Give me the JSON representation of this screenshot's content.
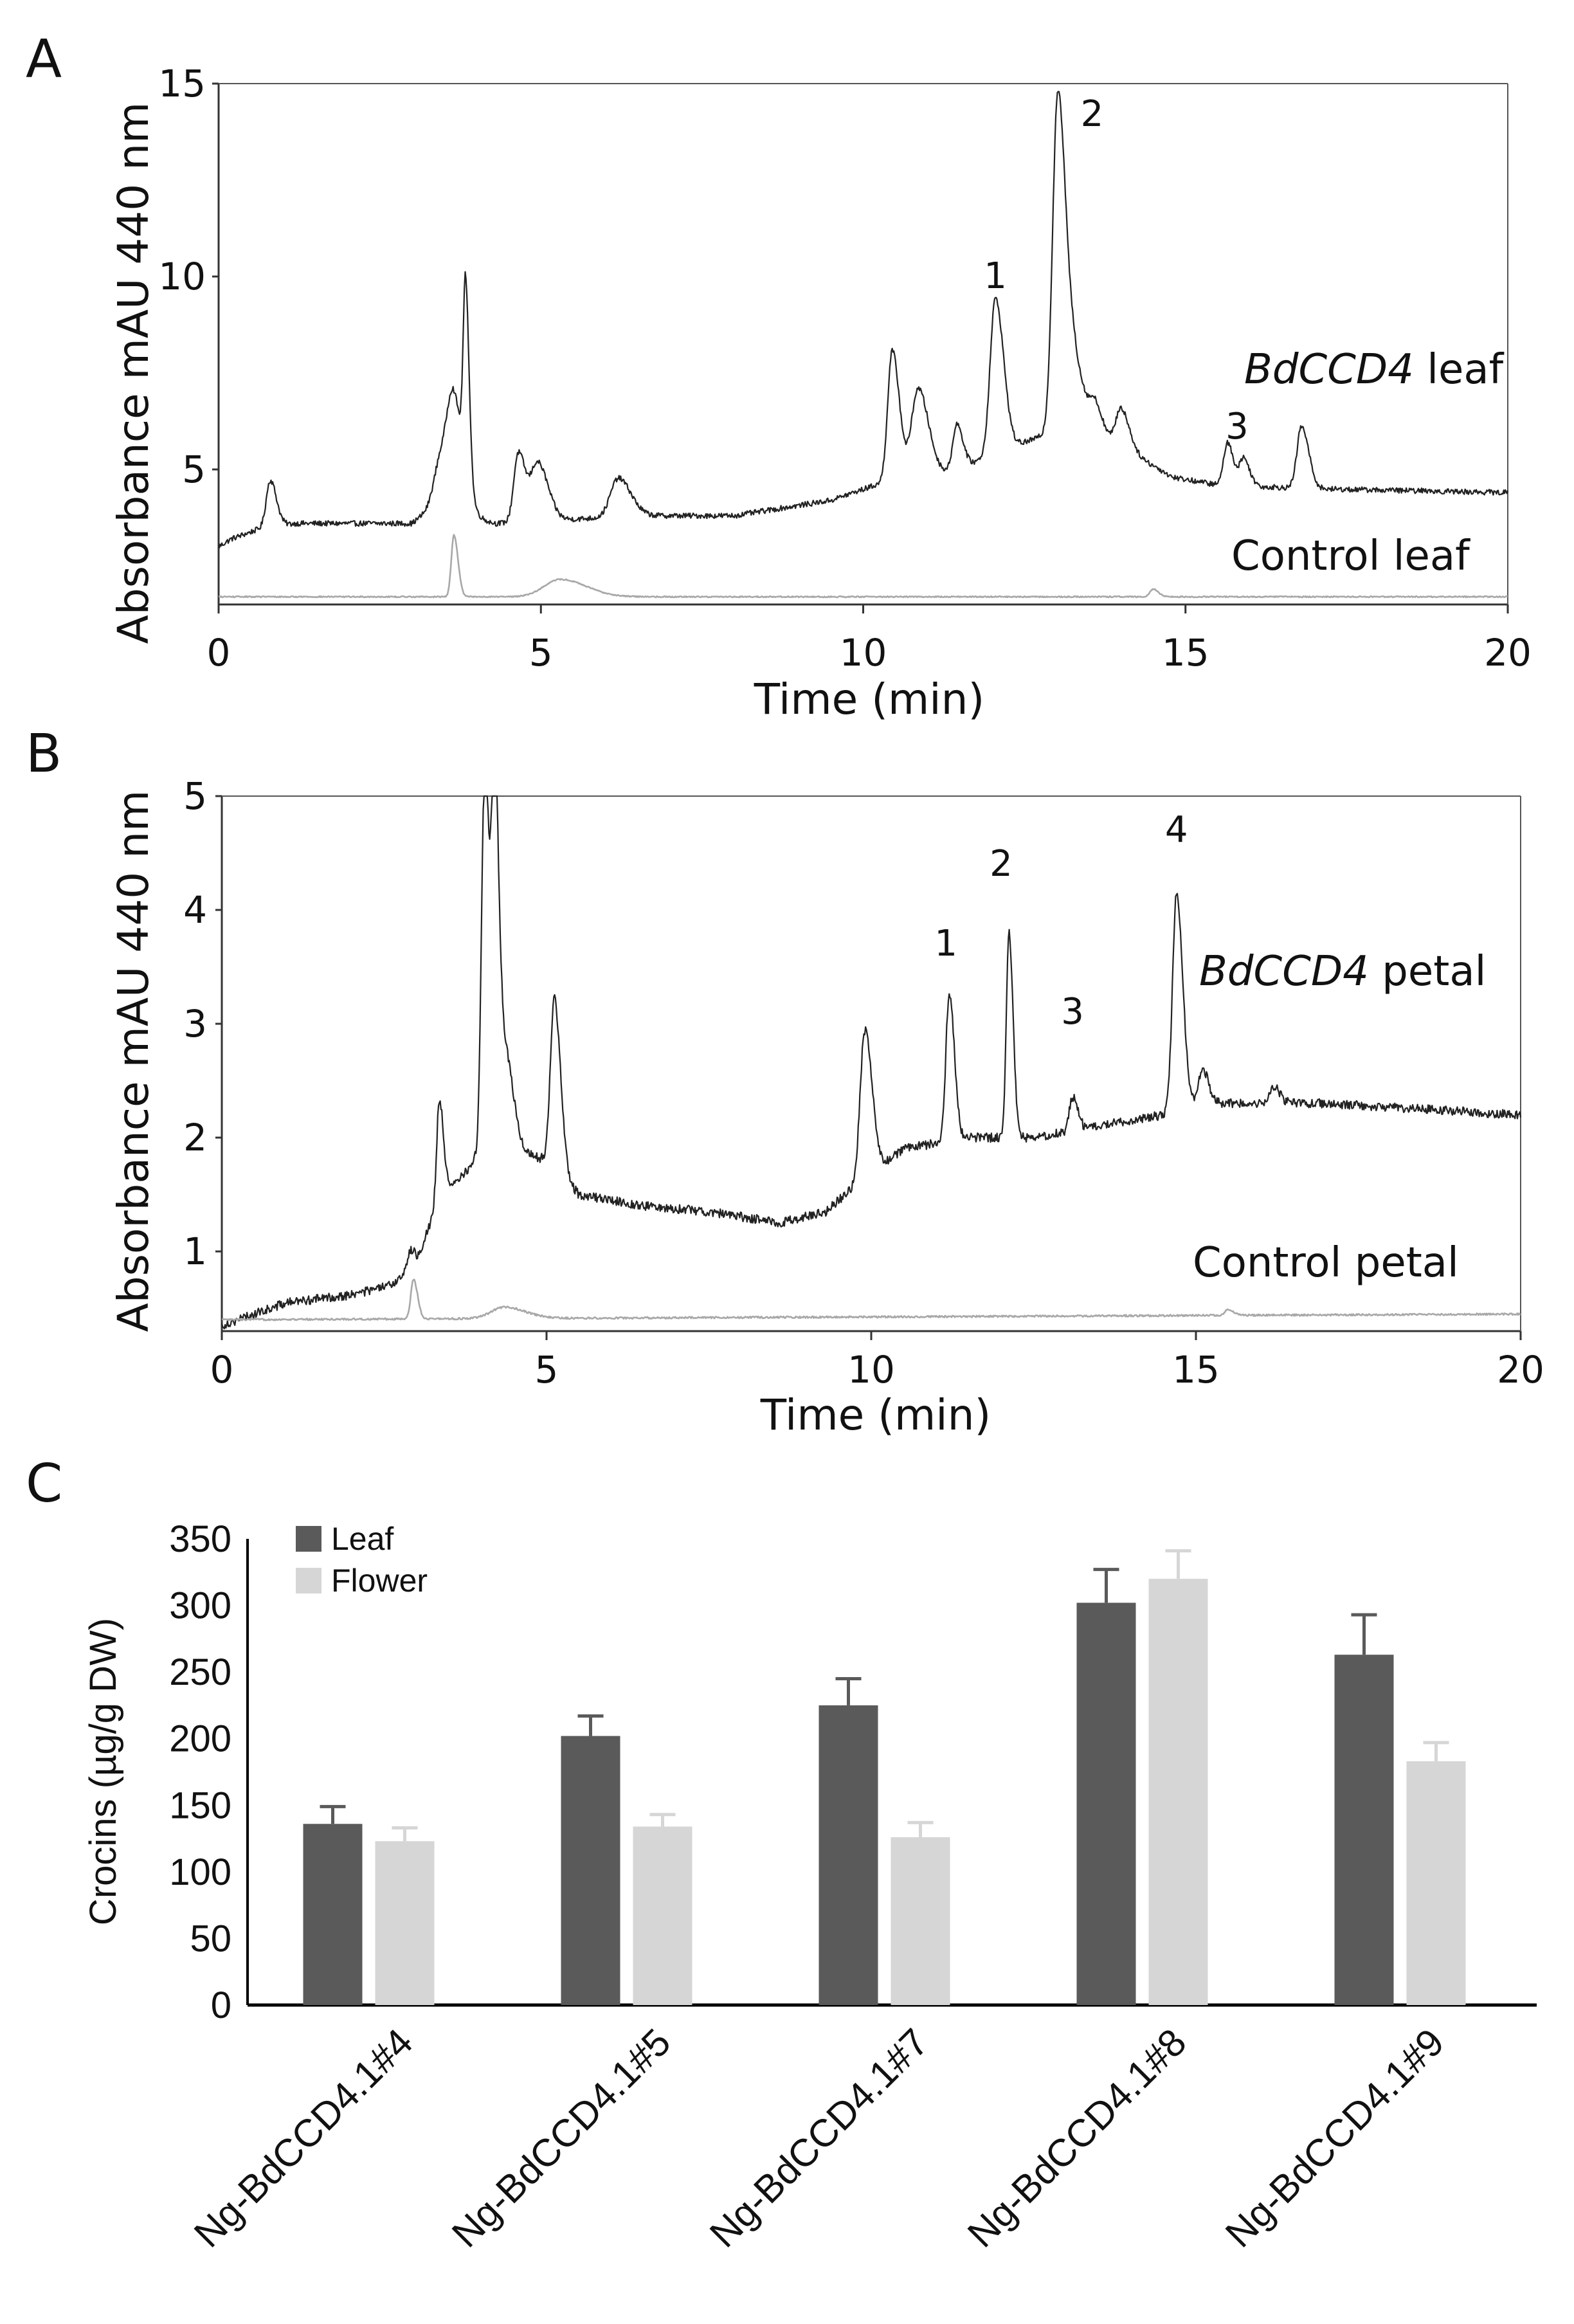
{
  "chart_data": [
    {
      "id": "A",
      "panel_letter": "A",
      "type": "line",
      "xlabel": "Time (min)",
      "ylabel": "Absorbance mAU 440 nm",
      "xlim": [
        0,
        20
      ],
      "ylim": [
        1.5,
        15
      ],
      "x_ticks": [
        0,
        5,
        10,
        15,
        20
      ],
      "y_ticks": [
        5,
        10,
        15
      ],
      "series": [
        {
          "name": "BdCCD4 leaf",
          "label_prefix": "BdCCD4",
          "label_suffix": " leaf",
          "color": "#222222",
          "baseline": [
            [
              0,
              3.0
            ],
            [
              0.2,
              3.2
            ],
            [
              0.7,
              3.5
            ],
            [
              1.2,
              3.6
            ],
            [
              3.0,
              3.6
            ],
            [
              3.3,
              4.0
            ],
            [
              4.3,
              3.6
            ],
            [
              6.5,
              3.8
            ],
            [
              8,
              3.8
            ],
            [
              9.5,
              4.2
            ],
            [
              10.2,
              4.6
            ],
            [
              11.5,
              5.0
            ],
            [
              12,
              5.4
            ],
            [
              13,
              6.0
            ],
            [
              14,
              5.6
            ],
            [
              14.8,
              4.8
            ],
            [
              15.5,
              4.6
            ],
            [
              17,
              4.5
            ],
            [
              20,
              4.4
            ]
          ],
          "peaks": [
            [
              0.8,
              1.2,
              0.06
            ],
            [
              3.45,
              1.3,
              0.1
            ],
            [
              3.65,
              2.6,
              0.1
            ],
            [
              3.83,
              4.8,
              0.035
            ],
            [
              4.65,
              1.8,
              0.07
            ],
            [
              4.95,
              1.5,
              0.1
            ],
            [
              6.2,
              1.0,
              0.12
            ],
            [
              10.45,
              3.4,
              0.07
            ],
            [
              10.85,
              2.3,
              0.1
            ],
            [
              11.45,
              1.2,
              0.06
            ],
            [
              12.05,
              4.0,
              0.08
            ],
            [
              13.02,
              8.8,
              0.08
            ],
            [
              13.3,
              1.6,
              0.1
            ],
            [
              13.6,
              0.8,
              0.08
            ],
            [
              14.0,
              1.0,
              0.08
            ],
            [
              15.65,
              1.1,
              0.06
            ],
            [
              15.9,
              0.7,
              0.06
            ],
            [
              16.8,
              1.6,
              0.07
            ]
          ],
          "noise_amplitude": 0.07
        },
        {
          "name": "Control leaf",
          "color": "#a8a8a8",
          "baseline": [
            [
              0,
              1.7
            ],
            [
              20,
              1.7
            ]
          ],
          "peaks": [
            [
              3.65,
              1.6,
              0.04
            ],
            [
              5.3,
              0.45,
              0.25
            ],
            [
              14.5,
              0.2,
              0.05
            ]
          ],
          "noise_amplitude": 0.015
        }
      ],
      "annotations": [
        {
          "text": "1",
          "x": 12.05,
          "y": 9.7
        },
        {
          "text": "2",
          "x": 13.55,
          "y": 13.9
        },
        {
          "text": "3",
          "x": 15.8,
          "y": 5.8
        }
      ]
    },
    {
      "id": "B",
      "panel_letter": "B",
      "type": "line",
      "xlabel": "Time (min)",
      "ylabel": "Absorbance mAU 440 nm",
      "xlim": [
        0,
        20
      ],
      "ylim": [
        0.3,
        5
      ],
      "x_ticks": [
        0,
        5,
        10,
        15,
        20
      ],
      "y_ticks": [
        1,
        2,
        3,
        4,
        5
      ],
      "series": [
        {
          "name": "BdCCD4 petal",
          "label_prefix": "BdCCD4",
          "label_suffix": " petal",
          "color": "#222222",
          "baseline": [
            [
              0,
              0.35
            ],
            [
              0.5,
              0.45
            ],
            [
              1,
              0.55
            ],
            [
              2,
              0.62
            ],
            [
              2.6,
              0.7
            ],
            [
              3.0,
              0.9
            ],
            [
              3.3,
              1.4
            ],
            [
              3.6,
              1.6
            ],
            [
              3.9,
              1.8
            ],
            [
              4.5,
              1.9
            ],
            [
              5,
              1.8
            ],
            [
              5.5,
              1.5
            ],
            [
              6.5,
              1.4
            ],
            [
              7.5,
              1.35
            ],
            [
              8.6,
              1.25
            ],
            [
              9.3,
              1.35
            ],
            [
              9.8,
              1.6
            ],
            [
              10.5,
              1.9
            ],
            [
              11.5,
              2.0
            ],
            [
              12.5,
              2.0
            ],
            [
              13.5,
              2.1
            ],
            [
              14.5,
              2.2
            ],
            [
              15.0,
              2.3
            ],
            [
              16,
              2.3
            ],
            [
              17,
              2.3
            ],
            [
              20,
              2.2
            ]
          ],
          "peaks": [
            [
              2.9,
              0.15,
              0.05
            ],
            [
              3.35,
              0.9,
              0.04
            ],
            [
              4.05,
              3.5,
              0.05
            ],
            [
              4.2,
              3.1,
              0.04
            ],
            [
              4.35,
              0.9,
              0.08
            ],
            [
              5.12,
              1.5,
              0.06
            ],
            [
              9.9,
              1.3,
              0.07
            ],
            [
              11.2,
              1.3,
              0.05
            ],
            [
              12.12,
              1.8,
              0.04
            ],
            [
              13.1,
              0.3,
              0.05
            ],
            [
              14.7,
              1.9,
              0.06
            ],
            [
              15.1,
              0.3,
              0.06
            ],
            [
              16.2,
              0.15,
              0.06
            ]
          ],
          "noise_amplitude": 0.04
        },
        {
          "name": "Control petal",
          "color": "#a8a8a8",
          "baseline": [
            [
              0,
              0.4
            ],
            [
              20,
              0.45
            ]
          ],
          "peaks": [
            [
              2.95,
              0.35,
              0.04
            ],
            [
              4.35,
              0.1,
              0.2
            ],
            [
              15.5,
              0.05,
              0.05
            ]
          ],
          "noise_amplitude": 0.008
        }
      ],
      "annotations": [
        {
          "text": "1",
          "x": 11.15,
          "y": 3.6
        },
        {
          "text": "2",
          "x": 12.0,
          "y": 4.3
        },
        {
          "text": "3",
          "x": 13.1,
          "y": 3.0
        },
        {
          "text": "4",
          "x": 14.7,
          "y": 4.6
        }
      ]
    },
    {
      "id": "C",
      "panel_letter": "C",
      "type": "bar",
      "ylabel": "Crocins (µg/g DW)",
      "ylim": [
        0,
        350
      ],
      "y_ticks": [
        0,
        50,
        100,
        150,
        200,
        250,
        300,
        350
      ],
      "categories": [
        "Ng-BdCCD4.1#4",
        "Ng-BdCCD4.1#5",
        "Ng-BdCCD4.1#7",
        "Ng-BdCCD4.1#8",
        "Ng-BdCCD4.1#9"
      ],
      "legend_position": "top-left",
      "series": [
        {
          "name": "Leaf",
          "color": "#5a5a5a",
          "values": [
            136,
            202,
            225,
            302,
            263
          ],
          "errors": [
            13,
            15,
            20,
            25,
            30
          ]
        },
        {
          "name": "Flower",
          "color": "#d6d6d6",
          "values": [
            123,
            134,
            126,
            320,
            183
          ],
          "errors": [
            10,
            9,
            11,
            21,
            14
          ]
        }
      ]
    }
  ]
}
